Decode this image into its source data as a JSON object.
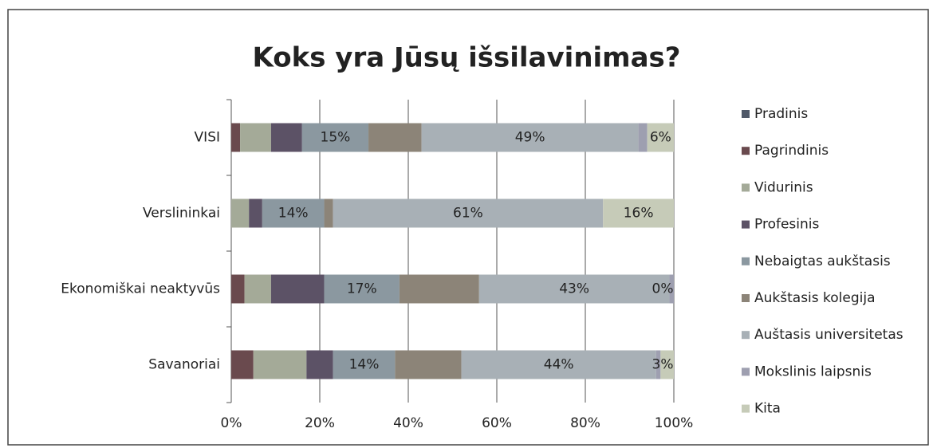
{
  "chart_data": {
    "type": "stacked-bar-horizontal",
    "title": "Koks yra Jūsų išsilavinimas?",
    "categories": [
      "VISI",
      "Verslininkai",
      "Ekonomiškai neaktyvūs",
      "Savanoriai"
    ],
    "series": [
      {
        "name": "Pradinis",
        "color": "#4f5868",
        "values": [
          0,
          0,
          0,
          0
        ]
      },
      {
        "name": "Pagrindinis",
        "color": "#6a4a4e",
        "values": [
          2,
          0,
          3,
          5
        ]
      },
      {
        "name": "Vidurinis",
        "color": "#a4aa98",
        "values": [
          7,
          4,
          6,
          12
        ]
      },
      {
        "name": "Profesinis",
        "color": "#5c5266",
        "values": [
          7,
          3,
          12,
          6
        ]
      },
      {
        "name": "Nebaigtas aukštasis",
        "color": "#8b98a0",
        "values": [
          15,
          14,
          17,
          14
        ],
        "value_labels": [
          "15%",
          "14%",
          "17%",
          "14%"
        ]
      },
      {
        "name": "Aukštasis kolegija",
        "color": "#8c8478",
        "values": [
          12,
          2,
          18,
          15
        ]
      },
      {
        "name": "Auštasis universitetas",
        "color": "#a8b0b6",
        "values": [
          49,
          61,
          43,
          44
        ],
        "value_labels": [
          "49%",
          "61%",
          "43%",
          "44%"
        ]
      },
      {
        "name": "Mokslinis laipsnis",
        "color": "#9e9fb0",
        "values": [
          2,
          0,
          1,
          1
        ]
      },
      {
        "name": "Kita",
        "color": "#c6cbb8",
        "values": [
          6,
          16,
          0,
          3
        ],
        "value_labels": [
          "6%",
          "16%",
          "0%",
          "3%"
        ]
      }
    ],
    "xlim": [
      0,
      100
    ],
    "xticks": [
      {
        "value": 0,
        "label": "0%"
      },
      {
        "value": 20,
        "label": "20%"
      },
      {
        "value": 40,
        "label": "40%"
      },
      {
        "value": 60,
        "label": "60%"
      },
      {
        "value": 80,
        "label": "80%"
      },
      {
        "value": 100,
        "label": "100%"
      }
    ],
    "grid": true,
    "legend": "right"
  }
}
